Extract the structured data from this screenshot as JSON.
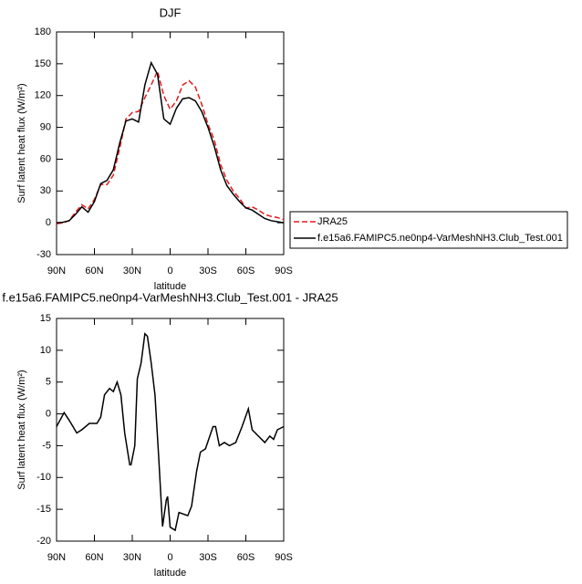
{
  "chart_data": [
    {
      "type": "line",
      "title": "DJF",
      "xlabel": "latitude",
      "ylabel": "Surf latent heat flux (W/m²)",
      "x": [
        90,
        85,
        80,
        75,
        70,
        65,
        60,
        55,
        50,
        45,
        40,
        35,
        30,
        25,
        20,
        15,
        10,
        5,
        0,
        -5,
        -10,
        -15,
        -20,
        -25,
        -30,
        -35,
        -40,
        -45,
        -50,
        -55,
        -60,
        -65,
        -70,
        -75,
        -80,
        -85,
        -90
      ],
      "series": [
        {
          "name": "JRA25",
          "color": "#e31a1c",
          "dashed": true,
          "values": [
            -1,
            0,
            2,
            10,
            17,
            13,
            22,
            36,
            36,
            45,
            70,
            98,
            104,
            105,
            118,
            130,
            143,
            120,
            107,
            115,
            130,
            134,
            128,
            112,
            93,
            78,
            55,
            40,
            30,
            23,
            14,
            15,
            12,
            8,
            6,
            5,
            3
          ]
        },
        {
          "name": "f.e15a6.FAMIPC5.ne0np4-VarMeshNH3.Club_Test.001",
          "color": "#000000",
          "dashed": false,
          "values": [
            0,
            0.5,
            2,
            8,
            15,
            10,
            20,
            37,
            40,
            50,
            75,
            96,
            98,
            95,
            130,
            151,
            140,
            98,
            93,
            108,
            117,
            118,
            115,
            105,
            90,
            72,
            50,
            35,
            27,
            20,
            14,
            12,
            8,
            4,
            2,
            1,
            0
          ]
        }
      ],
      "xlim": [
        90,
        -90
      ],
      "xticks": [
        {
          "value": 90,
          "label": "90N"
        },
        {
          "value": 60,
          "label": "60N"
        },
        {
          "value": 30,
          "label": "30N"
        },
        0,
        {
          "value": -30,
          "label": "30S"
        },
        {
          "value": -60,
          "label": "60S"
        },
        {
          "value": -90,
          "label": "90S"
        }
      ],
      "ylim": [
        -30,
        180
      ],
      "yticks": [
        -30,
        0,
        30,
        60,
        90,
        120,
        150,
        180
      ]
    },
    {
      "type": "line",
      "title": "f.e15a6.FAMIPC5.ne0np4-VarMeshNH3.Club_Test.001 - JRA25",
      "xlabel": "latitude",
      "ylabel": "Surf latent heat flux (W/m²)",
      "x": [
        90,
        84,
        80,
        74,
        70,
        64,
        58,
        55,
        52,
        48,
        45,
        42,
        39,
        36,
        32,
        31,
        28,
        26,
        23,
        20,
        18,
        15,
        12,
        9,
        6,
        3,
        2,
        0,
        -4,
        -7,
        -14,
        -17,
        -21,
        -24,
        -28,
        -34,
        -36,
        -39,
        -43,
        -47,
        -52,
        -57,
        -62,
        -65,
        -70,
        -75,
        -79,
        -82,
        -85,
        -90
      ],
      "series": [
        {
          "color": "#000000",
          "dashed": false,
          "values": [
            -2,
            0.2,
            -1,
            -3,
            -2.5,
            -1.5,
            -1.5,
            -0.5,
            3,
            4,
            3.5,
            5,
            3,
            -3,
            -8,
            -8,
            -5,
            5.5,
            8,
            12.6,
            12.2,
            8,
            3,
            -7,
            -17.7,
            -13.5,
            -13,
            -17.8,
            -18.3,
            -15.5,
            -16,
            -14.5,
            -9,
            -6,
            -5.5,
            -2,
            -2,
            -5,
            -4.5,
            -5,
            -4.5,
            -2,
            0.8,
            -2.5,
            -3.5,
            -4.5,
            -3.5,
            -4,
            -2.5,
            -2
          ]
        }
      ],
      "xlim": [
        90,
        -90
      ],
      "xticks": [
        {
          "value": 90,
          "label": "90N"
        },
        {
          "value": 60,
          "label": "60N"
        },
        {
          "value": 30,
          "label": "30N"
        },
        0,
        {
          "value": -30,
          "label": "30S"
        },
        {
          "value": -60,
          "label": "60S"
        },
        {
          "value": -90,
          "label": "90S"
        }
      ],
      "ylim": [
        -20,
        15
      ],
      "yticks": [
        -20,
        -15,
        -10,
        -5,
        0,
        5,
        10,
        15
      ]
    }
  ]
}
